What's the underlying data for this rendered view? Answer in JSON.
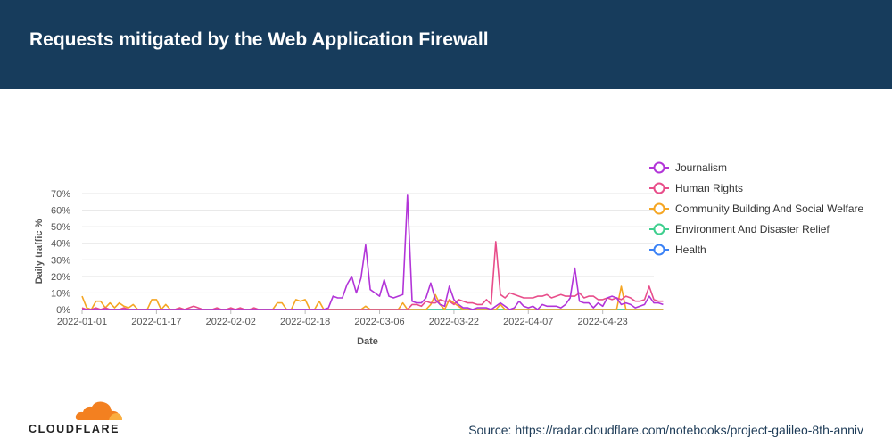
{
  "header": {
    "title": "Requests mitigated by the Web Application Firewall"
  },
  "footer": {
    "logo_text": "CLOUDFLARE",
    "source": "Source: https://radar.cloudflare.com/notebooks/project-galileo-8th-anniv"
  },
  "colors": {
    "header_bg": "#173c5c",
    "logo_orange": "#f38020",
    "logo_light": "#faae40"
  },
  "chart_data": {
    "type": "line",
    "title": "",
    "xlabel": "Date",
    "ylabel": "Daily traffic %",
    "ylim": [
      0,
      70
    ],
    "yticks": [
      "0%",
      "10%",
      "20%",
      "30%",
      "40%",
      "50%",
      "60%",
      "70%"
    ],
    "xticks": [
      "2022-01-01",
      "2022-01-17",
      "2022-02-02",
      "2022-02-18",
      "2022-03-06",
      "2022-03-22",
      "2022-04-07",
      "2022-04-23"
    ],
    "x_start": "2022-01-01",
    "x_end": "2022-05-04",
    "grid": true,
    "legend_position": "right",
    "series": [
      {
        "name": "Journalism",
        "color": "#b234d8",
        "values": [
          0,
          0,
          0,
          0,
          0,
          0,
          0,
          0,
          0,
          0,
          0,
          0,
          0,
          0,
          0,
          0,
          0,
          0,
          0,
          0,
          0,
          0,
          0,
          0,
          0,
          0,
          0,
          0,
          0,
          0,
          0,
          0,
          0,
          0,
          0,
          0,
          0,
          0,
          0,
          0,
          0,
          0,
          0,
          0,
          0,
          0,
          0,
          0,
          0,
          0,
          0,
          0,
          0,
          1,
          8,
          7,
          7,
          15,
          20,
          10,
          19,
          39,
          12,
          10,
          8,
          18,
          8,
          7,
          8,
          9,
          69,
          5,
          4,
          4,
          7,
          16,
          6,
          3,
          2,
          14,
          6,
          3,
          1,
          1,
          0,
          1,
          1,
          1,
          0,
          2,
          4,
          2,
          0,
          1,
          5,
          2,
          1,
          2,
          0,
          3,
          2,
          2,
          2,
          1,
          3,
          7,
          25,
          5,
          4,
          4,
          1,
          4,
          2,
          7,
          8,
          7,
          3,
          4,
          3,
          1,
          2,
          3,
          8,
          4,
          4,
          3
        ]
      },
      {
        "name": "Human Rights",
        "color": "#e84d8a",
        "values": [
          1,
          0,
          0,
          1,
          0,
          1,
          0,
          0,
          0,
          1,
          0,
          0,
          0,
          0,
          0,
          0,
          0,
          0,
          0,
          0,
          0,
          1,
          0,
          1,
          2,
          1,
          0,
          0,
          0,
          1,
          0,
          0,
          1,
          0,
          1,
          0,
          0,
          1,
          0,
          0,
          0,
          0,
          0,
          0,
          0,
          0,
          0,
          0,
          0,
          0,
          0,
          0,
          0,
          0,
          0,
          0,
          0,
          0,
          0,
          0,
          0,
          0,
          0,
          0,
          0,
          0,
          0,
          0,
          0,
          0,
          0,
          3,
          3,
          2,
          5,
          4,
          4,
          6,
          5,
          5,
          3,
          6,
          5,
          4,
          4,
          3,
          3,
          6,
          3,
          41,
          9,
          7,
          10,
          9,
          8,
          7,
          7,
          7,
          8,
          8,
          9,
          7,
          8,
          9,
          8,
          8,
          8,
          10,
          7,
          8,
          8,
          6,
          6,
          7,
          6,
          7,
          6,
          8,
          7,
          5,
          5,
          6,
          14,
          6,
          5,
          5
        ]
      },
      {
        "name": "Community Building And Social Welfare",
        "color": "#f5a623",
        "values": [
          8,
          1,
          0,
          5,
          5,
          1,
          4,
          1,
          4,
          2,
          1,
          3,
          0,
          0,
          0,
          6,
          6,
          0,
          3,
          0,
          0,
          1,
          0,
          0,
          0,
          0,
          0,
          0,
          0,
          0,
          0,
          0,
          0,
          0,
          0,
          0,
          0,
          0,
          0,
          0,
          0,
          0,
          4,
          4,
          0,
          0,
          6,
          5,
          6,
          0,
          0,
          5,
          0,
          0,
          0,
          0,
          0,
          0,
          0,
          0,
          0,
          2,
          0,
          0,
          0,
          0,
          0,
          0,
          0,
          4,
          0,
          0,
          0,
          0,
          0,
          3,
          9,
          3,
          0,
          6,
          4,
          2,
          0,
          0,
          0,
          0,
          0,
          0,
          0,
          0,
          3,
          0,
          0,
          0,
          0,
          0,
          0,
          0,
          0,
          0,
          0,
          0,
          0,
          0,
          0,
          0,
          0,
          0,
          0,
          0,
          0,
          0,
          0,
          0,
          0,
          0,
          14,
          0,
          0,
          0,
          0,
          0,
          0,
          0,
          0,
          0
        ]
      },
      {
        "name": "Environment And Disaster Relief",
        "color": "#3ecf8e",
        "values": [
          0,
          0,
          0,
          0,
          0,
          0,
          0,
          0,
          0,
          0,
          0,
          0,
          0,
          0,
          0,
          0,
          0,
          0,
          0,
          0,
          0,
          0,
          0,
          0,
          0,
          0,
          0,
          0,
          0,
          0,
          0,
          0,
          0,
          0,
          0,
          0,
          0,
          0,
          0,
          0,
          0,
          0,
          0,
          0,
          0,
          0,
          0,
          0,
          0,
          0,
          0,
          0,
          0,
          0,
          0,
          0,
          0,
          0,
          0,
          0,
          0,
          0,
          0,
          0,
          0,
          0,
          0,
          0,
          0,
          0,
          0,
          0,
          0,
          0,
          0,
          0,
          0,
          0,
          0,
          0,
          0,
          0,
          0,
          0,
          0,
          0,
          0,
          0,
          0,
          0,
          0,
          0,
          0,
          0,
          0,
          0,
          0,
          0,
          0,
          0,
          0,
          0,
          0,
          0,
          0,
          0,
          0,
          0,
          0,
          0,
          0,
          0,
          0,
          0,
          0,
          0,
          0,
          0,
          0,
          0,
          0,
          0,
          0,
          0,
          0,
          0
        ]
      },
      {
        "name": "Health",
        "color": "#3b82f6",
        "values": [
          0,
          0,
          0,
          0,
          0,
          0,
          0,
          0,
          0,
          0,
          0,
          0,
          0,
          0,
          0,
          0,
          0,
          0,
          0,
          0,
          0,
          0,
          0,
          0,
          0,
          0,
          0,
          0,
          0,
          0,
          0,
          0,
          0,
          0,
          0,
          0,
          0,
          0,
          0,
          0,
          0,
          0,
          0,
          0,
          0,
          0,
          0,
          0,
          0,
          0,
          0,
          0,
          0,
          0,
          0,
          0,
          0,
          0,
          0,
          0,
          0,
          0,
          0,
          0,
          0,
          0,
          0,
          0,
          0,
          0,
          0,
          0,
          0,
          0,
          0,
          0,
          0,
          0,
          0,
          0,
          0,
          0,
          0,
          0,
          0,
          0,
          0,
          0,
          0,
          0,
          0,
          0,
          0,
          0,
          0,
          0,
          0,
          0,
          0,
          0,
          0,
          0,
          0,
          0,
          0,
          0,
          0,
          0,
          0,
          0,
          0,
          0,
          0,
          0,
          0,
          0,
          0,
          0,
          0,
          0,
          0,
          0,
          0,
          0,
          0,
          0
        ]
      }
    ]
  }
}
